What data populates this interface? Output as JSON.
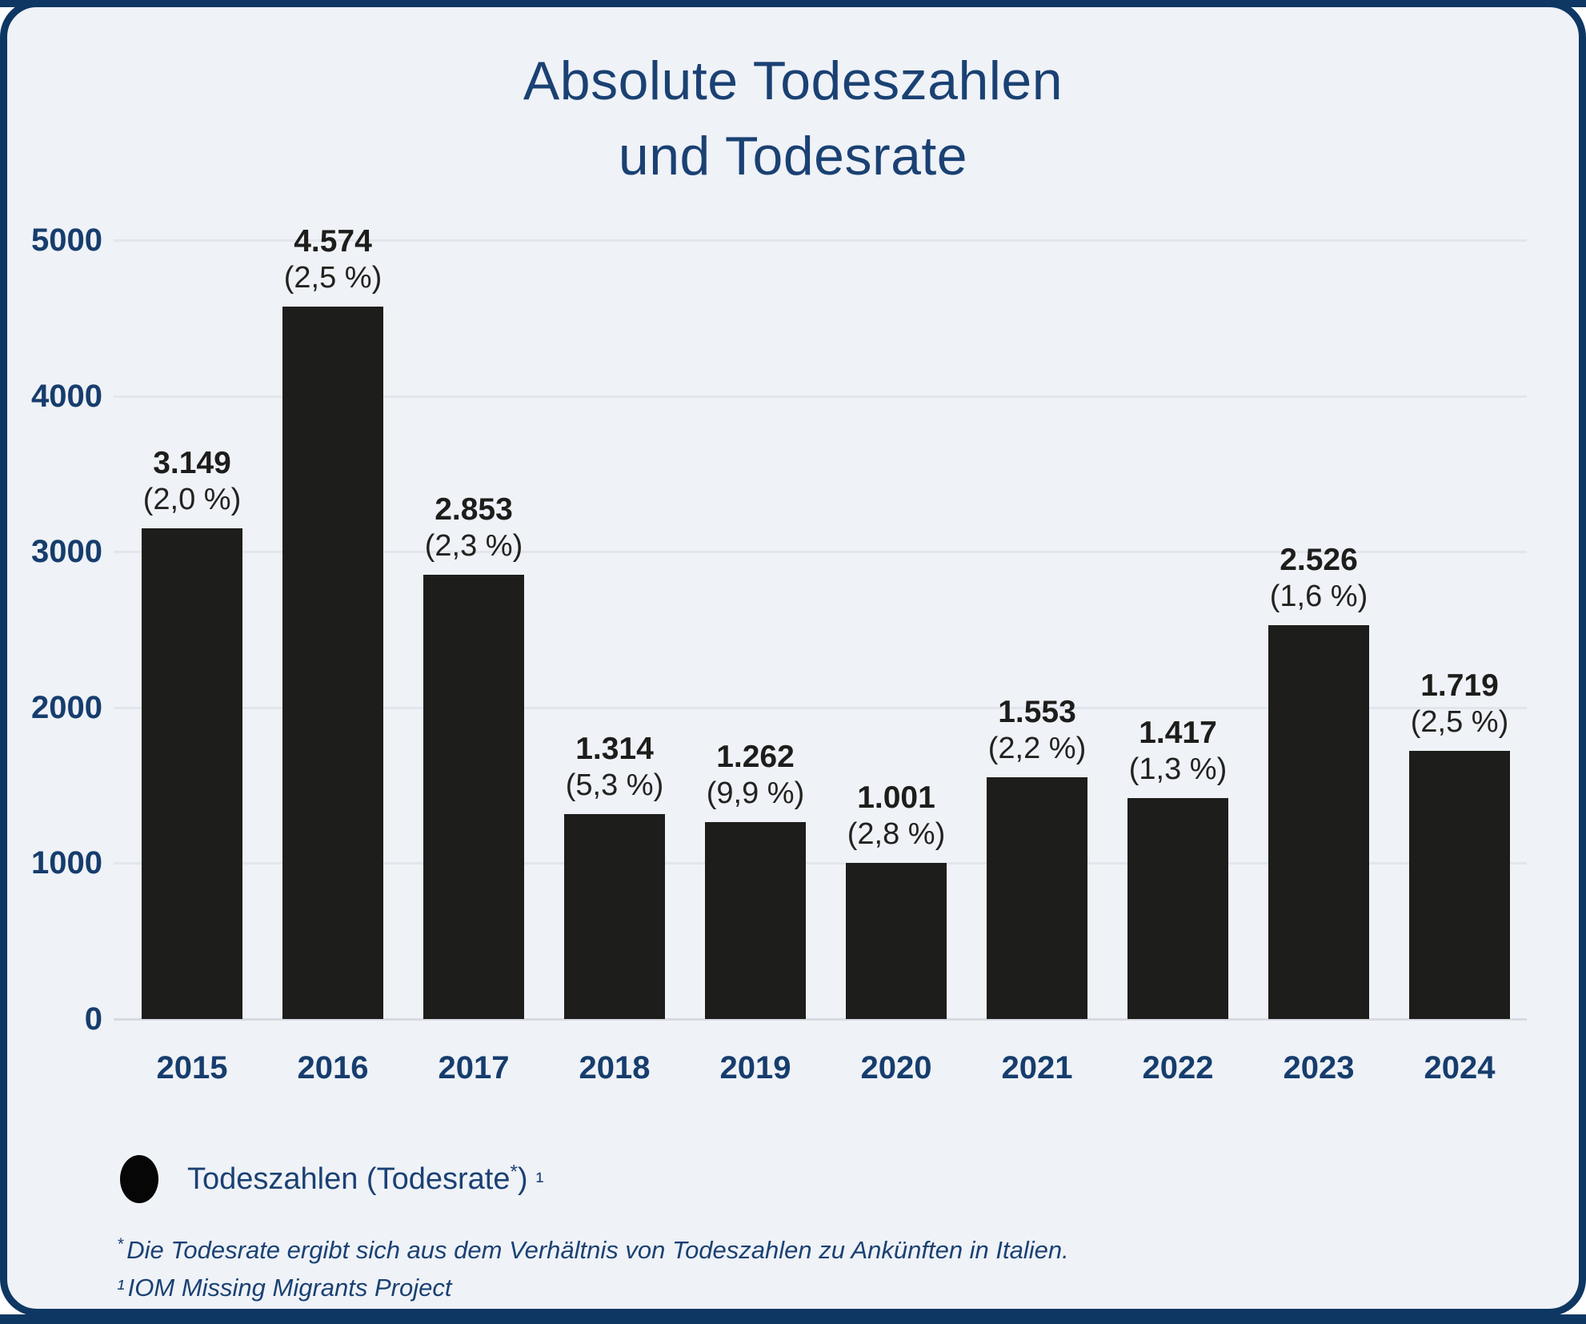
{
  "title": {
    "line1": "Absolute Todeszahlen",
    "line2": "und Todesrate"
  },
  "chart_data": {
    "type": "bar",
    "categories": [
      "2015",
      "2016",
      "2017",
      "2018",
      "2019",
      "2020",
      "2021",
      "2022",
      "2023",
      "2024"
    ],
    "values": [
      3149,
      4574,
      2853,
      1314,
      1262,
      1001,
      1553,
      1417,
      2526,
      1719
    ],
    "value_labels": [
      "3.149",
      "4.574",
      "2.853",
      "1.314",
      "1.262",
      "1.001",
      "1.553",
      "1.417",
      "2.526",
      "1.719"
    ],
    "rate_labels": [
      "(2,0 %)",
      "(2,5 %)",
      "(2,3 %)",
      "(5,3 %)",
      "(9,9 %)",
      "(2,8 %)",
      "(2,2 %)",
      "(1,3 %)",
      "(1,6 %)",
      "(2,5 %)"
    ],
    "title": "Absolute Todeszahlen und Todesrate",
    "xlabel": "",
    "ylabel": "",
    "ylim": [
      0,
      5000
    ],
    "yticks": [
      5000,
      4000,
      3000,
      2000,
      1000,
      0
    ],
    "ytick_labels": [
      "5000",
      "4000",
      "3000",
      "2000",
      "1000",
      "0"
    ],
    "grid": true,
    "legend_position": "bottom-left",
    "series_name": "Todeszahlen (Todesrate*) ¹"
  },
  "colors": {
    "bar": "#1d1d1b",
    "navy_text": "#1a4173",
    "frame": "#0e3763",
    "card_bg": "#eff2f7",
    "grid": "#e2e6ec"
  },
  "legend": {
    "text_before_sup": "Todeszahlen (Todesrate",
    "sup_star": "*",
    "text_close": ")",
    "sup_ref": "¹"
  },
  "footnotes": [
    {
      "marker": "*",
      "text": "Die Todesrate ergibt sich aus dem Verhältnis von Todeszahlen zu Ankünften in Italien."
    },
    {
      "marker": "¹",
      "text": "IOM Missing Migrants Project"
    }
  ]
}
